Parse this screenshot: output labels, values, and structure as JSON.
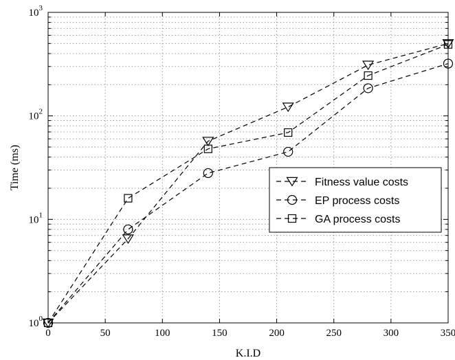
{
  "chart_data": {
    "type": "line",
    "xlabel": "K.I.D",
    "ylabel": "Time (ms)",
    "xlim": [
      0,
      350
    ],
    "ylim": [
      1,
      1000
    ],
    "yscale": "log",
    "grid": true,
    "legend_position": "right",
    "x_ticks": [
      "0",
      "50",
      "100",
      "150",
      "200",
      "250",
      "300",
      "350"
    ],
    "y_ticks": [
      {
        "base": "10",
        "exp": "0"
      },
      {
        "base": "10",
        "exp": "1"
      },
      {
        "base": "10",
        "exp": "2"
      },
      {
        "base": "10",
        "exp": "3"
      }
    ],
    "x": [
      0,
      70,
      140,
      210,
      280,
      350
    ],
    "series": [
      {
        "name": "Fitness value costs",
        "marker": "triangle-down",
        "values": [
          1,
          6.5,
          57,
          122,
          310,
          500
        ]
      },
      {
        "name": "EP process costs",
        "marker": "circle",
        "values": [
          1,
          8,
          28,
          45,
          185,
          320
        ]
      },
      {
        "name": "GA process costs",
        "marker": "square",
        "values": [
          1,
          16,
          48,
          69,
          245,
          490
        ]
      }
    ]
  }
}
